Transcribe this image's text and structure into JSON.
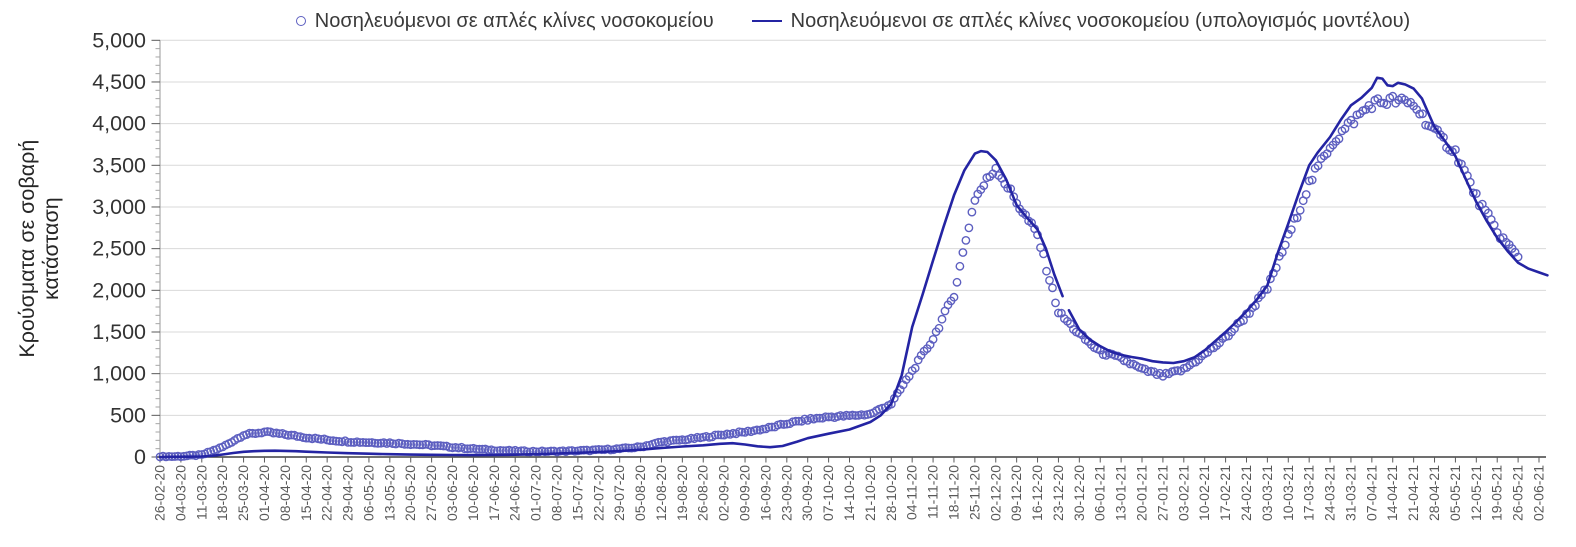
{
  "legend_title": "",
  "chart_data": {
    "type": "line",
    "title": "",
    "ylabel_line1": "Κρούσματα σε σοβαρή",
    "ylabel_line2": "κατάσταση",
    "xlabel": "",
    "ylim": [
      0,
      5000
    ],
    "grid": "horizontal",
    "legend_position": "top-center",
    "y_ticks": [
      "0",
      "500",
      "1,000",
      "1,500",
      "2,000",
      "2,500",
      "3,000",
      "3,500",
      "4,000",
      "4,500",
      "5,000"
    ],
    "categories": [
      "26-02-20",
      "04-03-20",
      "11-03-20",
      "18-03-20",
      "25-03-20",
      "01-04-20",
      "08-04-20",
      "15-04-20",
      "22-04-20",
      "29-04-20",
      "06-05-20",
      "13-05-20",
      "20-05-20",
      "27-05-20",
      "03-06-20",
      "10-06-20",
      "17-06-20",
      "24-06-20",
      "01-07-20",
      "08-07-20",
      "15-07-20",
      "22-07-20",
      "29-07-20",
      "05-08-20",
      "12-08-20",
      "19-08-20",
      "26-08-20",
      "02-09-20",
      "09-09-20",
      "16-09-20",
      "23-09-20",
      "30-09-20",
      "07-10-20",
      "14-10-20",
      "21-10-20",
      "28-10-20",
      "04-11-20",
      "11-11-20",
      "18-11-20",
      "25-11-20",
      "02-12-20",
      "09-12-20",
      "16-12-20",
      "23-12-20",
      "30-12-20",
      "06-01-21",
      "13-01-21",
      "20-01-21",
      "27-01-21",
      "03-02-21",
      "10-02-21",
      "17-02-21",
      "24-02-21",
      "03-03-21",
      "10-03-21",
      "17-03-21",
      "24-03-21",
      "31-03-21",
      "07-04-21",
      "14-04-21",
      "21-04-21",
      "28-04-21",
      "05-05-21",
      "12-05-21",
      "19-05-21",
      "26-05-21",
      "02-06-21"
    ],
    "series": [
      {
        "name": "Νοσηλευόμενοι σε απλές κλίνες νοσοκομείου",
        "style": "scatter",
        "weekly_values": [
          5,
          8,
          25,
          120,
          265,
          300,
          270,
          235,
          205,
          185,
          175,
          168,
          155,
          140,
          118,
          98,
          82,
          72,
          66,
          68,
          74,
          84,
          98,
          120,
          180,
          205,
          235,
          270,
          300,
          340,
          400,
          450,
          480,
          495,
          515,
          640,
          1030,
          1420,
          1950,
          3100,
          3480,
          3060,
          2660,
          1740,
          1470,
          1260,
          1180,
          1050,
          975,
          1050,
          1230,
          1430,
          1700,
          2020,
          2640,
          3280,
          3740,
          4010,
          4240,
          4280,
          4230,
          3900,
          3660,
          3120,
          2700,
          2400,
          null
        ]
      },
      {
        "name": "Νοσηλευόμενοι σε απλές κλίνες νοσοκομείου (υπολογισμός μοντέλου)",
        "style": "line",
        "segments": [
          [
            [
              0,
              0
            ],
            [
              1,
              2
            ],
            [
              2,
              6
            ],
            [
              2.5,
              14
            ],
            [
              3,
              30
            ],
            [
              3.5,
              48
            ],
            [
              4,
              62
            ],
            [
              4.5,
              70
            ],
            [
              5,
              74
            ],
            [
              5.5,
              75
            ],
            [
              6,
              73
            ],
            [
              6.5,
              69
            ],
            [
              7,
              64
            ],
            [
              8,
              54
            ],
            [
              9,
              46
            ],
            [
              10,
              40
            ],
            [
              11,
              34
            ],
            [
              12,
              29
            ],
            [
              13,
              26
            ],
            [
              14,
              24
            ],
            [
              15,
              23
            ],
            [
              16,
              24
            ],
            [
              17,
              28
            ],
            [
              18,
              34
            ],
            [
              19,
              42
            ],
            [
              20,
              50
            ],
            [
              21,
              60
            ],
            [
              22,
              72
            ],
            [
              23,
              88
            ],
            [
              24,
              108
            ],
            [
              25,
              126
            ],
            [
              26,
              140
            ],
            [
              26.8,
              158
            ],
            [
              27.4,
              166
            ],
            [
              28,
              150
            ],
            [
              28.6,
              128
            ],
            [
              29.2,
              118
            ],
            [
              29.8,
              132
            ],
            [
              30.5,
              185
            ],
            [
              31,
              225
            ],
            [
              32,
              280
            ],
            [
              33,
              330
            ],
            [
              34,
              420
            ],
            [
              34.5,
              500
            ],
            [
              35,
              640
            ],
            [
              35.5,
              980
            ],
            [
              36,
              1560
            ],
            [
              36.5,
              1950
            ],
            [
              37,
              2360
            ],
            [
              37.5,
              2760
            ],
            [
              38,
              3140
            ],
            [
              38.5,
              3440
            ],
            [
              39,
              3640
            ],
            [
              39.3,
              3670
            ],
            [
              39.6,
              3660
            ],
            [
              40,
              3560
            ],
            [
              40.5,
              3330
            ],
            [
              41,
              3020
            ],
            [
              41.5,
              2870
            ],
            [
              42,
              2730
            ],
            [
              42.4,
              2500
            ],
            [
              42.8,
              2190
            ],
            [
              43.2,
              1930
            ]
          ],
          [
            [
              43.5,
              1760
            ],
            [
              44,
              1530
            ],
            [
              44.5,
              1410
            ],
            [
              45,
              1330
            ],
            [
              45.5,
              1265
            ],
            [
              46,
              1225
            ],
            [
              46.5,
              1200
            ],
            [
              47,
              1180
            ],
            [
              47.5,
              1150
            ],
            [
              48,
              1135
            ],
            [
              48.5,
              1128
            ],
            [
              49,
              1150
            ],
            [
              49.5,
              1195
            ],
            [
              50,
              1280
            ],
            [
              50.5,
              1390
            ],
            [
              51,
              1500
            ],
            [
              51.5,
              1620
            ],
            [
              52,
              1750
            ],
            [
              52.5,
              1890
            ],
            [
              53,
              2060
            ],
            [
              53.5,
              2450
            ],
            [
              54,
              2800
            ],
            [
              54.5,
              3160
            ],
            [
              55,
              3500
            ],
            [
              55.4,
              3650
            ],
            [
              56,
              3840
            ],
            [
              56.5,
              4040
            ],
            [
              57,
              4220
            ],
            [
              57.5,
              4310
            ],
            [
              58,
              4430
            ],
            [
              58.25,
              4550
            ],
            [
              58.5,
              4540
            ],
            [
              58.75,
              4460
            ],
            [
              59,
              4450
            ],
            [
              59.25,
              4490
            ],
            [
              59.6,
              4470
            ],
            [
              60,
              4420
            ],
            [
              60.4,
              4300
            ],
            [
              61,
              3960
            ],
            [
              61.5,
              3790
            ],
            [
              62,
              3610
            ],
            [
              62.5,
              3330
            ],
            [
              63,
              3060
            ],
            [
              63.5,
              2830
            ],
            [
              64,
              2630
            ],
            [
              64.5,
              2470
            ],
            [
              65,
              2330
            ],
            [
              65.5,
              2260
            ],
            [
              66,
              2215
            ],
            [
              66.4,
              2180
            ]
          ]
        ]
      }
    ],
    "colors": {
      "scatter_marker": "#5d5fc0",
      "model_line": "#2424a3",
      "gridline": "#d9d9d9",
      "x_axis": "#404040",
      "y_axis": "#9a9a9a",
      "tick": "#595959",
      "minor_tick": "#a6a6a6",
      "x_label": "#595959",
      "y_label": "#333333",
      "axis_title": "#262626"
    }
  }
}
